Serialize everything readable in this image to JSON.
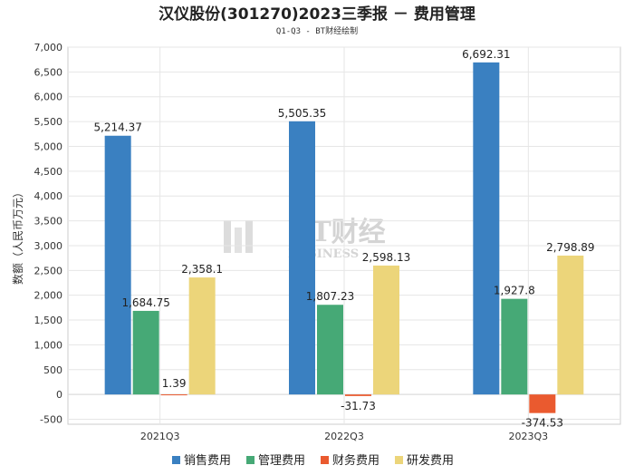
{
  "title": "汉仪股份(301270)2023三季报 － 费用管理",
  "subtitle": "Q1-Q3 - BT财经绘制",
  "watermark": {
    "main": "BT财经",
    "sub": "BUSINESS"
  },
  "chart_data": {
    "type": "bar",
    "title": "汉仪股份(301270)2023三季报 － 费用管理",
    "subtitle": "Q1-Q3 - BT财经绘制",
    "xlabel": "",
    "ylabel": "数额（人民币万元）",
    "ylim": [
      -600,
      7000
    ],
    "yticks": [
      -500,
      0,
      500,
      1000,
      1500,
      2000,
      2500,
      3000,
      3500,
      4000,
      4500,
      5000,
      5500,
      6000,
      6500,
      7000
    ],
    "ytick_labels": [
      "-500",
      "0",
      "500",
      "1,000",
      "1,500",
      "2,000",
      "2,500",
      "3,000",
      "3,500",
      "4,000",
      "4,500",
      "5,000",
      "5,500",
      "6,000",
      "6,500",
      "7,000"
    ],
    "categories": [
      "2021Q3",
      "2022Q3",
      "2023Q3"
    ],
    "grid": true,
    "legend_position": "bottom",
    "series": [
      {
        "name": "销售费用",
        "color": "#3a80c1",
        "values": [
          5214.37,
          5505.35,
          6692.31
        ],
        "labels": [
          "5,214.37",
          "5,505.35",
          "6,692.31"
        ]
      },
      {
        "name": "管理费用",
        "color": "#46a976",
        "values": [
          1684.75,
          1807.23,
          1927.8
        ],
        "labels": [
          "1,684.75",
          "1,807.23",
          "1,927.8"
        ]
      },
      {
        "name": "财务费用",
        "color": "#ea5a2f",
        "values": [
          1.39,
          -31.73,
          -374.53
        ],
        "labels": [
          "1.39",
          "-31.73",
          "-374.53"
        ]
      },
      {
        "name": "研发费用",
        "color": "#ecd57a",
        "values": [
          2358.1,
          2598.13,
          2798.89
        ],
        "labels": [
          "2,358.1",
          "2,598.13",
          "2,798.89"
        ]
      }
    ]
  }
}
